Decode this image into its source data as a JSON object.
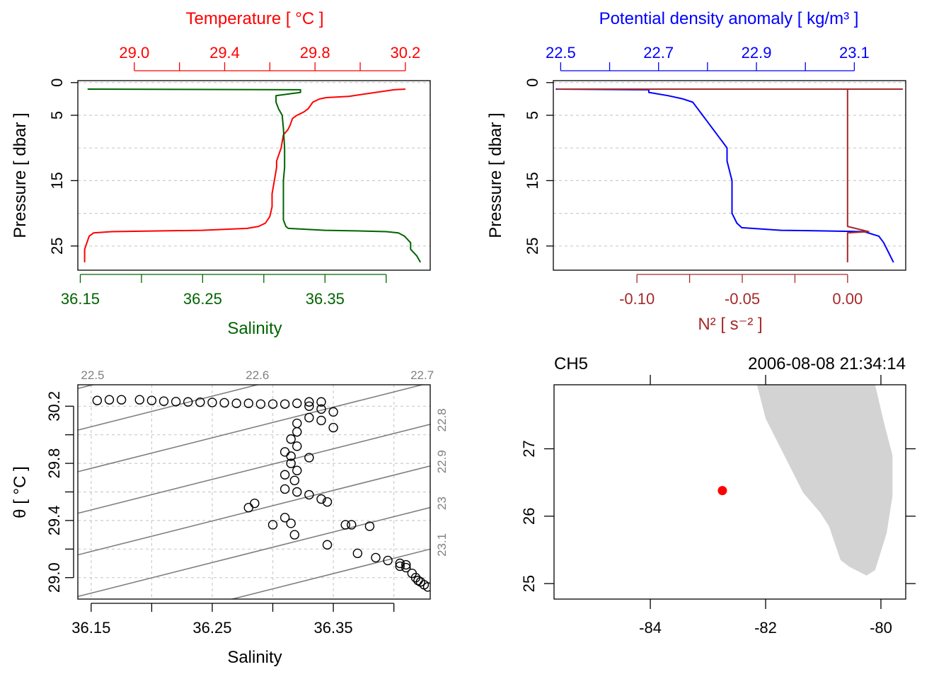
{
  "colors": {
    "temperature": "#ff0000",
    "salinity": "#006400",
    "density": "#0000ff",
    "n2": "#a52a2a",
    "grid": "#cccccc",
    "isopycnal": "#808080",
    "land": "#d3d3d3",
    "station": "#ff0000",
    "axis": "#000000"
  },
  "chart_data": [
    {
      "type": "line",
      "name": "temperature-salinity-profile",
      "title": "",
      "ylabel": "Pressure [ dbar ]",
      "ylim": [
        28.7,
        -0.3
      ],
      "yticks": [
        0,
        5,
        15,
        25
      ],
      "ygrid": [
        0,
        5,
        10,
        15,
        20,
        25
      ],
      "xtop": {
        "label": "Temperature [ °C ]",
        "range": [
          28.75,
          30.31
        ],
        "ticks": [
          29.0,
          29.2,
          29.4,
          29.6,
          29.8,
          30.0,
          30.2
        ],
        "ticklabels": [
          "29.0",
          "29.4",
          "29.8",
          "30.2"
        ]
      },
      "xbottom": {
        "label": "Salinity",
        "range": [
          36.148,
          36.436
        ],
        "ticks": [
          36.15,
          36.2,
          36.25,
          36.3,
          36.35,
          36.4
        ],
        "ticklabels": [
          "36.15",
          "36.25",
          "36.35"
        ]
      },
      "series": [
        {
          "name": "Temperature",
          "axis": "top",
          "points": [
            [
              30.2,
              1.0
            ],
            [
              30.15,
              1.1
            ],
            [
              29.95,
              2.1
            ],
            [
              29.85,
              2.3
            ],
            [
              29.82,
              2.5
            ],
            [
              29.79,
              3.0
            ],
            [
              29.77,
              4.0
            ],
            [
              29.75,
              4.5
            ],
            [
              29.72,
              5.0
            ],
            [
              29.7,
              5.5
            ],
            [
              29.69,
              6.5
            ],
            [
              29.68,
              7.2
            ],
            [
              29.66,
              8.0
            ],
            [
              29.65,
              10.0
            ],
            [
              29.64,
              11.0
            ],
            [
              29.63,
              12.0
            ],
            [
              29.63,
              13.0
            ],
            [
              29.62,
              15.0
            ],
            [
              29.61,
              17.0
            ],
            [
              29.61,
              19.0
            ],
            [
              29.6,
              20.5
            ],
            [
              29.58,
              21.5
            ],
            [
              29.55,
              22.0
            ],
            [
              29.5,
              22.3
            ],
            [
              29.3,
              22.6
            ],
            [
              28.9,
              22.8
            ],
            [
              28.82,
              23.0
            ],
            [
              28.8,
              23.5
            ],
            [
              28.79,
              24.5
            ],
            [
              28.78,
              25.5
            ],
            [
              28.78,
              26.5
            ],
            [
              28.78,
              27.5
            ]
          ]
        },
        {
          "name": "Salinity",
          "axis": "bottom",
          "points": [
            [
              36.156,
              1.0
            ],
            [
              36.33,
              1.1
            ],
            [
              36.33,
              1.5
            ],
            [
              36.31,
              2.0
            ],
            [
              36.31,
              3.0
            ],
            [
              36.312,
              4.0
            ],
            [
              36.315,
              5.0
            ],
            [
              36.316,
              7.0
            ],
            [
              36.317,
              10.0
            ],
            [
              36.317,
              13.0
            ],
            [
              36.316,
              15.0
            ],
            [
              36.316,
              18.0
            ],
            [
              36.316,
              21.0
            ],
            [
              36.318,
              22.0
            ],
            [
              36.32,
              22.3
            ],
            [
              36.35,
              22.6
            ],
            [
              36.38,
              22.7
            ],
            [
              36.4,
              22.8
            ],
            [
              36.41,
              23.0
            ],
            [
              36.415,
              23.5
            ],
            [
              36.42,
              24.5
            ],
            [
              36.42,
              25.5
            ],
            [
              36.425,
              26.5
            ],
            [
              36.428,
              27.5
            ]
          ]
        }
      ]
    },
    {
      "type": "line",
      "name": "density-n2-profile",
      "title": "",
      "ylabel": "Pressure [ dbar ]",
      "ylim": [
        28.7,
        -0.3
      ],
      "yticks": [
        0,
        5,
        15,
        25
      ],
      "ygrid": [
        0,
        5,
        10,
        15,
        20,
        25
      ],
      "xtop": {
        "label": "Potential density anomaly [ kg/m³ ]",
        "range": [
          22.485,
          23.205
        ],
        "ticks": [
          22.5,
          22.6,
          22.7,
          22.8,
          22.9,
          23.0,
          23.1
        ],
        "ticklabels": [
          "22.5",
          "22.7",
          "22.9",
          "23.1"
        ]
      },
      "xbottom": {
        "label": "N² [ s⁻² ]",
        "range": [
          -0.1397,
          0.0276
        ],
        "ticks": [
          -0.1,
          -0.075,
          -0.05,
          -0.025,
          0.0
        ],
        "ticklabels": [
          "-0.10",
          "-0.05",
          "0.00"
        ]
      },
      "series": [
        {
          "name": "Potential density anomaly",
          "axis": "top",
          "points": [
            [
              22.49,
              1.0
            ],
            [
              22.68,
              1.1
            ],
            [
              22.68,
              1.5
            ],
            [
              22.72,
              2.0
            ],
            [
              22.75,
              2.5
            ],
            [
              22.77,
              3.0
            ],
            [
              22.78,
              4.0
            ],
            [
              22.79,
              5.0
            ],
            [
              22.8,
              6.0
            ],
            [
              22.82,
              8.0
            ],
            [
              22.83,
              9.0
            ],
            [
              22.84,
              10.0
            ],
            [
              22.84,
              12.0
            ],
            [
              22.85,
              15.0
            ],
            [
              22.85,
              18.0
            ],
            [
              22.85,
              20.0
            ],
            [
              22.86,
              21.5
            ],
            [
              22.87,
              22.2
            ],
            [
              22.95,
              22.6
            ],
            [
              23.05,
              22.7
            ],
            [
              23.12,
              22.8
            ],
            [
              23.15,
              23.5
            ],
            [
              23.16,
              24.5
            ],
            [
              23.17,
              26.0
            ],
            [
              23.18,
              27.5
            ]
          ]
        },
        {
          "name": "N²",
          "axis": "bottom",
          "points": [
            [
              -0.138,
              1.0
            ],
            [
              0.026,
              1.0
            ],
            [
              0.0,
              1.0
            ],
            [
              0.0,
              1.3
            ],
            [
              0.0,
              5.0
            ],
            [
              0.0,
              10.0
            ],
            [
              0.0,
              15.0
            ],
            [
              0.0,
              20.0
            ],
            [
              0.0,
              22.0
            ],
            [
              0.01,
              22.8
            ],
            [
              0.0,
              23.0
            ],
            [
              0.0,
              25.0
            ],
            [
              0.0,
              27.5
            ]
          ]
        }
      ]
    },
    {
      "type": "scatter",
      "name": "ts-diagram",
      "title": "",
      "xlabel": "Salinity",
      "ylabel": "θ [ °C ]",
      "xlim": [
        36.139,
        36.43
      ],
      "ylim": [
        28.85,
        30.35
      ],
      "xticks": [
        36.15,
        36.2,
        36.25,
        36.3,
        36.35,
        36.4
      ],
      "xticklabels": [
        "36.15",
        "36.25",
        "36.35"
      ],
      "yticks": [
        29.0,
        29.2,
        29.4,
        29.6,
        29.8,
        30.0,
        30.2
      ],
      "yticklabels": [
        "29.0",
        "29.4",
        "29.8",
        "30.2"
      ],
      "isopycnals": {
        "levels": [
          22.5,
          22.6,
          22.7,
          22.8,
          22.9,
          23.0,
          23.1
        ],
        "labels": [
          "22.5",
          "22.6",
          "22.7",
          "22.8",
          "22.9",
          "23",
          "23.1"
        ],
        "top_labeled": [
          "22.5",
          "22.6",
          "22.7"
        ],
        "right_labeled": [
          "22.8",
          "22.9",
          "23",
          "23.1"
        ]
      },
      "points": [
        [
          36.155,
          30.24
        ],
        [
          36.165,
          30.245
        ],
        [
          36.175,
          30.245
        ],
        [
          36.19,
          30.245
        ],
        [
          36.2,
          30.24
        ],
        [
          36.21,
          30.235
        ],
        [
          36.22,
          30.232
        ],
        [
          36.23,
          30.23
        ],
        [
          36.24,
          30.228
        ],
        [
          36.25,
          30.226
        ],
        [
          36.26,
          30.224
        ],
        [
          36.27,
          30.22
        ],
        [
          36.28,
          30.22
        ],
        [
          36.29,
          30.215
        ],
        [
          36.3,
          30.215
        ],
        [
          36.31,
          30.215
        ],
        [
          36.32,
          30.22
        ],
        [
          36.33,
          30.23
        ],
        [
          36.34,
          30.23
        ],
        [
          36.33,
          30.2
        ],
        [
          36.34,
          30.18
        ],
        [
          36.35,
          30.16
        ],
        [
          36.33,
          30.12
        ],
        [
          36.34,
          30.1
        ],
        [
          36.35,
          30.05
        ],
        [
          36.32,
          30.08
        ],
        [
          36.32,
          30.02
        ],
        [
          36.315,
          29.97
        ],
        [
          36.32,
          29.92
        ],
        [
          36.31,
          29.88
        ],
        [
          36.315,
          29.85
        ],
        [
          36.33,
          29.84
        ],
        [
          36.315,
          29.8
        ],
        [
          36.32,
          29.75
        ],
        [
          36.31,
          29.72
        ],
        [
          36.318,
          29.68
        ],
        [
          36.31,
          29.62
        ],
        [
          36.32,
          29.6
        ],
        [
          36.33,
          29.58
        ],
        [
          36.34,
          29.55
        ],
        [
          36.345,
          29.53
        ],
        [
          36.28,
          29.49
        ],
        [
          36.285,
          29.52
        ],
        [
          36.31,
          29.42
        ],
        [
          36.315,
          29.38
        ],
        [
          36.318,
          29.3
        ],
        [
          36.3,
          29.37
        ],
        [
          36.36,
          29.37
        ],
        [
          36.365,
          29.37
        ],
        [
          36.38,
          29.36
        ],
        [
          36.345,
          29.23
        ],
        [
          36.37,
          29.17
        ],
        [
          36.385,
          29.14
        ],
        [
          36.395,
          29.12
        ],
        [
          36.405,
          29.1
        ],
        [
          36.41,
          29.09
        ],
        [
          36.405,
          29.08
        ],
        [
          36.41,
          29.07
        ],
        [
          36.415,
          29.03
        ],
        [
          36.418,
          29.0
        ],
        [
          36.42,
          28.98
        ],
        [
          36.422,
          28.97
        ],
        [
          36.425,
          28.95
        ],
        [
          36.428,
          28.935
        ]
      ]
    },
    {
      "type": "scatter",
      "name": "station-map",
      "title": "",
      "xlim": [
        -85.67,
        -79.57
      ],
      "ylim": [
        24.77,
        27.95
      ],
      "xticks": [
        -84,
        -82,
        -80
      ],
      "xticklabels": [
        "-84",
        "-82",
        "-80"
      ],
      "yticks": [
        25,
        26,
        27
      ],
      "yticklabels": [
        "25",
        "26",
        "27"
      ],
      "station": {
        "lon": -82.75,
        "lat": 26.38
      },
      "land_outline": [
        [
          -82.15,
          27.95
        ],
        [
          -82.0,
          27.45
        ],
        [
          -81.35,
          26.35
        ],
        [
          -81.05,
          26.05
        ],
        [
          -80.9,
          25.85
        ],
        [
          -80.7,
          25.35
        ],
        [
          -80.55,
          25.25
        ],
        [
          -80.25,
          25.12
        ],
        [
          -80.1,
          25.2
        ],
        [
          -79.9,
          25.75
        ],
        [
          -79.8,
          26.3
        ],
        [
          -79.8,
          26.9
        ],
        [
          -79.95,
          27.4
        ],
        [
          -80.1,
          27.95
        ]
      ]
    }
  ],
  "map_header": {
    "station_name": "CH5",
    "datetime": "2006-08-08 21:34:14"
  }
}
